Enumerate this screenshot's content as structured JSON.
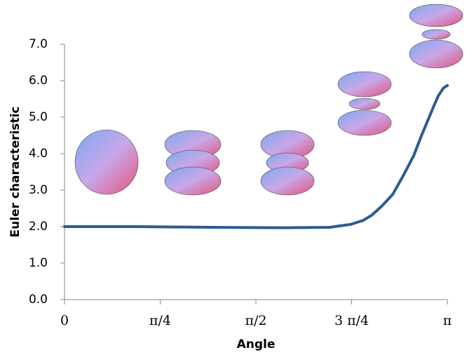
{
  "chart_data": {
    "type": "line",
    "xlabel": "Angle",
    "ylabel": "Euler characteristic",
    "x": [
      0,
      0.6,
      1.197,
      1.8,
      2.175,
      2.347,
      2.45,
      2.52,
      2.6,
      2.693,
      2.78,
      2.865,
      2.93,
      2.98,
      3.03,
      3.067,
      3.11,
      3.142
    ],
    "values": [
      2.0,
      2.0,
      1.98,
      1.97,
      1.98,
      2.06,
      2.17,
      2.31,
      2.55,
      2.88,
      3.4,
      3.94,
      4.5,
      4.9,
      5.3,
      5.58,
      5.8,
      5.87
    ],
    "color": "#2b5d8f",
    "xlim": [
      0,
      3.14159
    ],
    "xticks": [
      0,
      {
        "value": 0.785398,
        "label": "π/4"
      },
      {
        "value": 1.570796,
        "label": "π/2"
      },
      {
        "value": 2.356194,
        "label": "3 π/4"
      },
      {
        "value": 3.14159,
        "label": "π"
      }
    ],
    "ylim": [
      0,
      7
    ],
    "yticks": [
      {
        "value": 0,
        "label": "0.0"
      },
      {
        "value": 1,
        "label": "1.0"
      },
      {
        "value": 2,
        "label": "2.0"
      },
      {
        "value": 3,
        "label": "3.0"
      },
      {
        "value": 4,
        "label": "4.0"
      },
      {
        "value": 5,
        "label": "5.0"
      },
      {
        "value": 6,
        "label": "6.0"
      },
      {
        "value": 7,
        "label": "7.0"
      }
    ],
    "grid": false
  }
}
